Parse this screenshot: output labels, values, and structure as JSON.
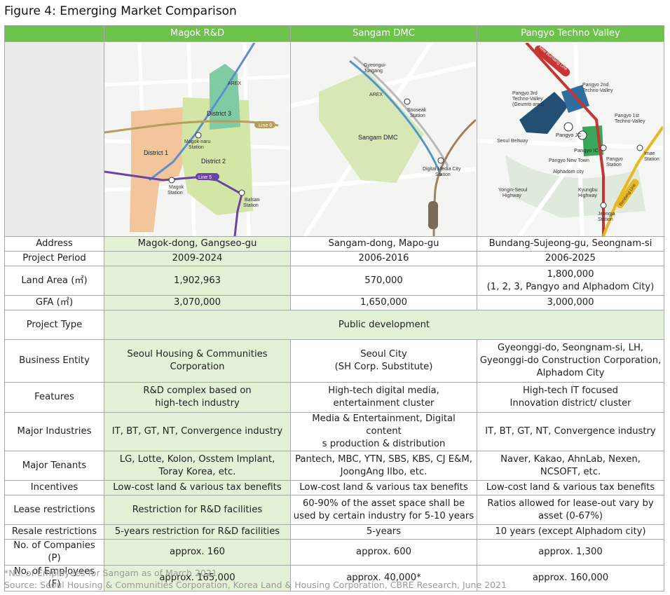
{
  "title": "Figure 4: Emerging Market Comparison",
  "columns": [
    "Magok R&D",
    "Sangam DMC",
    "Pangyo Techno Valley"
  ],
  "maps": {
    "magok": {
      "district1": "District 1",
      "district2": "District 2",
      "district3": "District 3",
      "magoknaru1": "Magok-naru",
      "magoknaru2": "Station",
      "magok1": "Magok",
      "magok2": "Station",
      "balsan1": "Balsan",
      "balsan2": "Station",
      "line5": "Line 5",
      "line9": "Line 9",
      "arex": "AREX"
    },
    "sangam": {
      "center": "Sangam DMC",
      "gyeongui1": "Gyeongui-",
      "gyeongui2": "Jungang",
      "arex": "AREX",
      "sooseak1": "Sooseak",
      "sooseak2": "Station",
      "dmc1": "Digital Media City",
      "dmc2": "Station"
    },
    "pangyo": {
      "p3_1": "Pangyo 3rd",
      "p3_2": "Techno-Valley",
      "p3_3": "(Geumto area)",
      "p2_1": "Pangyo 2nd",
      "p2_2": "Techno-Valley",
      "p1_1": "Pangyo 1st",
      "p1_2": "Techno-Valley",
      "pangyojc": "Pangyo JC",
      "pangyoic": "Pangyo IC",
      "beltway": "Seoul Beltway",
      "newtown": "Pangyo New Town",
      "alphadom": "Alphadom city",
      "pangyo1": "Pangyo",
      "pangyo2": "Station",
      "imae1": "Imae",
      "imae2": "Station",
      "yongin1": "Yongin-Seoul",
      "yongin2": "Highway",
      "kyungbu1": "Kyungbu",
      "kyungbu2": "Highway",
      "jeongja1": "Jeongja",
      "jeongja2": "Station",
      "sinbundang": "New Bundang Line",
      "bundangline": "Bundang Line"
    }
  },
  "rows": [
    {
      "label": "Address",
      "magok": "Magok-dong, Gangseo-gu",
      "sangam": "Sangam-dong, Mapo-gu",
      "pangyo": "Bundang-Sujeong-gu, Seongnam-si"
    },
    {
      "label": "Project Period",
      "magok": "2009-2024",
      "sangam": "2006-2016",
      "pangyo": "2006-2025"
    },
    {
      "label": "Land Area (㎡)",
      "magok": "1,902,963",
      "sangam": "570,000",
      "pangyo_a": "1,800,000",
      "pangyo_b": "(1, 2, 3, Pangyo and Alphadom City)"
    },
    {
      "label": "GFA (㎡)",
      "magok": "3,070,000",
      "sangam": "1,650,000",
      "pangyo": "3,000,000"
    },
    {
      "label": "Project Type",
      "all": "Public development"
    },
    {
      "label": "Business Entity",
      "magok_a": "Seoul Housing & Communities",
      "magok_b": "Corporation",
      "sangam_a": "Seoul City",
      "sangam_b": "(SH Corp. Substitute)",
      "pangyo_a": "Gyeonggi-do, Seongnam-si, LH,",
      "pangyo_b": "Gyeonggi-do Construction Corporation,",
      "pangyo_c": "Alphadom City"
    },
    {
      "label": "Features",
      "magok_a": "R&D complex based on",
      "magok_b": "high-tech industry",
      "sangam_a": "High-tech digital media,",
      "sangam_b": "entertainment cluster",
      "pangyo_a": "High-tech IT focused",
      "pangyo_b": "Innovation district/ cluster"
    },
    {
      "label": "Major Industries",
      "magok": "IT, BT, GT, NT, Convergence industry",
      "sangam_a": "Media & Entertainment, Digital content",
      "sangam_b": "s production & distribution",
      "pangyo": "IT, BT, GT, NT, Convergence industry"
    },
    {
      "label": "Major Tenants",
      "magok_a": "LG, Lotte, Kolon, Osstem Implant,",
      "magok_b": "Toray Korea, etc.",
      "sangam_a": "Pantech, MBC, YTN, SBS, KBS, CJ E&M,",
      "sangam_b": "JoongAng Ilbo, etc.",
      "pangyo_a": "Naver, Kakao, AhnLab, Nexen,",
      "pangyo_b": "NCSOFT, etc."
    },
    {
      "label": "Incentives",
      "magok": "Low-cost land & various tax benefits",
      "sangam": "Low-cost land & various tax benefits",
      "pangyo": "Low-cost land & various tax benefits"
    },
    {
      "label": "Lease restrictions",
      "magok": "Restriction for R&D facilities",
      "sangam_a": "60-90% of the asset space shall be",
      "sangam_b": "used by certain industry for 5-10 years",
      "pangyo_a": "Ratios allowed for lease-out vary by",
      "pangyo_b": "asset (0-67%)"
    },
    {
      "label": "Resale restrictions",
      "magok": "5-years restriction for R&D facilities",
      "sangam": "5-years",
      "pangyo": "10 years (except Alphadom city)"
    },
    {
      "label": "No. of Companies (P)",
      "magok": "approx. 160",
      "sangam": "approx. 600",
      "pangyo": "approx. 1,300"
    },
    {
      "label": "No. of Employees (F)",
      "magok": "approx. 165,000",
      "sangam": "approx. 40,000*",
      "pangyo": "approx. 160,000"
    }
  ],
  "footnote": "*No. of Employees for Sangam as of March 2021",
  "source": "Source: Seoul Housing & Communities Corporation, Korea Land & Housing Corporation, CBRE Research, June 2021",
  "colors": {
    "header_green": "#6cc24a",
    "magok_tint": "#e3f1d6",
    "border": "#a8a8a8"
  }
}
